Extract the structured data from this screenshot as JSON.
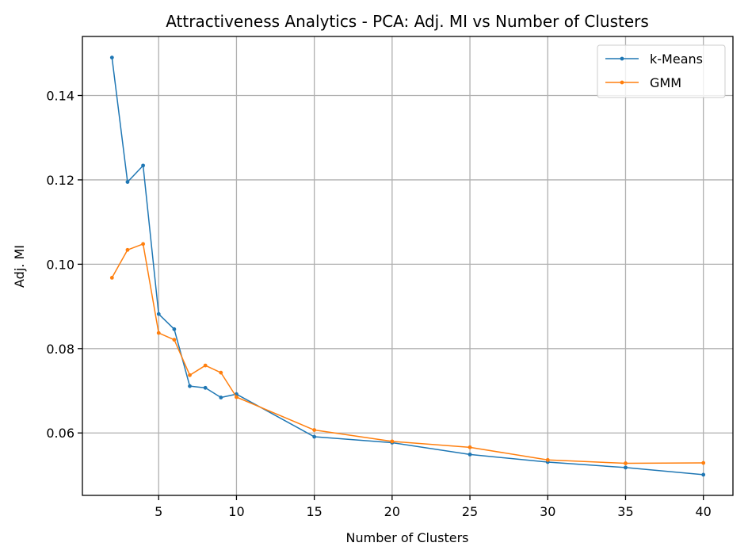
{
  "chart_data": {
    "type": "line",
    "title": "Attractiveness Analytics - PCA: Adj. MI vs Number of Clusters",
    "xlabel": "Number of Clusters",
    "ylabel": "Adj. MI",
    "xlim": [
      0.1,
      41.9
    ],
    "ylim": [
      0.0452,
      0.154
    ],
    "xticks": [
      5,
      10,
      15,
      20,
      25,
      30,
      35,
      40
    ],
    "xtick_labels": [
      "5",
      "10",
      "15",
      "20",
      "25",
      "30",
      "35",
      "40"
    ],
    "yticks": [
      0.06,
      0.08,
      0.1,
      0.12,
      0.14
    ],
    "ytick_labels": [
      "0.06",
      "0.08",
      "0.10",
      "0.12",
      "0.14"
    ],
    "grid": true,
    "legend_position": "top-right",
    "x": [
      2,
      3,
      4,
      5,
      6,
      7,
      8,
      9,
      10,
      15,
      20,
      25,
      30,
      35,
      40
    ],
    "series": [
      {
        "name": "k-Means",
        "color": "#1f77b4",
        "values": [
          0.149,
          0.1195,
          0.1234,
          0.0882,
          0.0846,
          0.0711,
          0.0707,
          0.0684,
          0.0692,
          0.0591,
          0.0577,
          0.0549,
          0.0531,
          0.0518,
          0.0501
        ]
      },
      {
        "name": "GMM",
        "color": "#ff7f0e",
        "values": [
          0.0968,
          0.1034,
          0.1048,
          0.0837,
          0.0821,
          0.0737,
          0.076,
          0.0743,
          0.0685,
          0.0607,
          0.058,
          0.0566,
          0.0536,
          0.0528,
          0.0529
        ]
      }
    ]
  }
}
